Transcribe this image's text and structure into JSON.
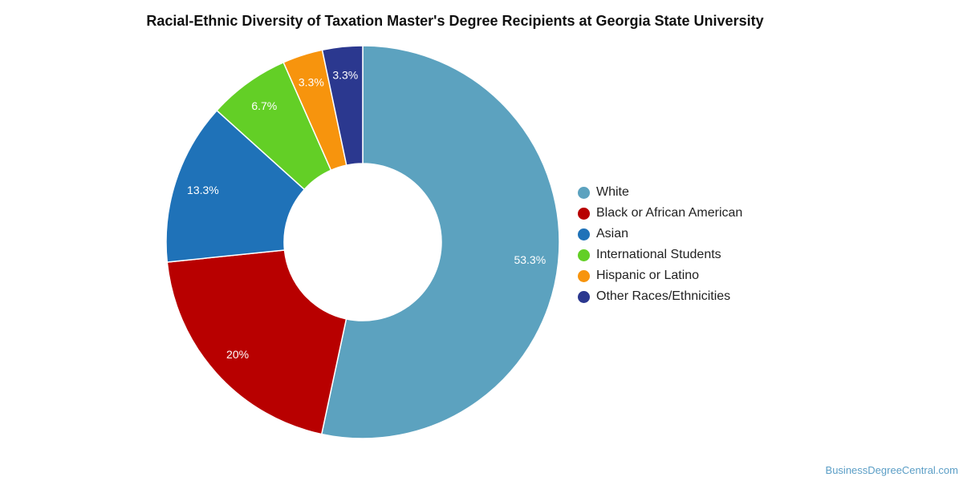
{
  "chart_data": {
    "type": "pie",
    "donut": true,
    "title": "Racial-Ethnic Diversity of Taxation Master's Degree Recipients at Georgia State University",
    "legend_position": "right",
    "slices": [
      {
        "label": "White",
        "value": 53.3,
        "display": "53.3%",
        "color": "#5ca2bf"
      },
      {
        "label": "Black or African American",
        "value": 20,
        "display": "20%",
        "color": "#b80000"
      },
      {
        "label": "Asian",
        "value": 13.3,
        "display": "13.3%",
        "color": "#1f72b8"
      },
      {
        "label": "International Students",
        "value": 6.7,
        "display": "6.7%",
        "color": "#63cf26"
      },
      {
        "label": "Hispanic or Latino",
        "value": 3.3,
        "display": "3.3%",
        "color": "#f7940d"
      },
      {
        "label": "Other Races/Ethnicities",
        "value": 3.3,
        "display": "3.3%",
        "color": "#2b388f"
      }
    ]
  },
  "watermark": "BusinessDegreeCentral.com"
}
